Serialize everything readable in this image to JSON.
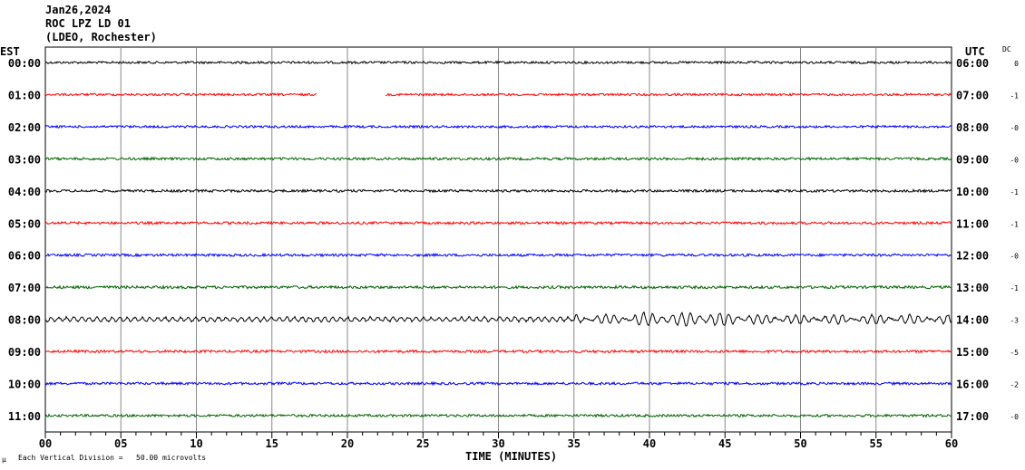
{
  "header": {
    "date": "Jan26,2024",
    "station": "ROC LPZ LD 01",
    "network": "(LDEO, Rochester)"
  },
  "left_axis_title": "EST",
  "right_axis_title": "UTC",
  "dc_title": "DC",
  "footer": {
    "mark": "μ",
    "scale": "Each Vertical Division =   50.00 microvolts",
    "xlabel": "TIME (MINUTES)"
  },
  "chart_data": {
    "type": "line",
    "title": "ROC LPZ LD 01 helicorder",
    "xlabel": "TIME (MINUTES)",
    "xlim": [
      0,
      60
    ],
    "xticks": [
      "00",
      "05",
      "10",
      "15",
      "20",
      "25",
      "30",
      "35",
      "40",
      "45",
      "50",
      "55",
      "60"
    ],
    "rows": [
      {
        "est": "00:00",
        "utc": "06:00",
        "dc": "0",
        "color": "#000000",
        "noise": 1
      },
      {
        "est": "01:00",
        "utc": "07:00",
        "dc": "-1",
        "color": "#ff0000",
        "noise": 1,
        "gap": [
          18,
          22.5
        ]
      },
      {
        "est": "02:00",
        "utc": "08:00",
        "dc": "-0",
        "color": "#0000ff",
        "noise": 1
      },
      {
        "est": "03:00",
        "utc": "09:00",
        "dc": "-0",
        "color": "#006400",
        "noise": 1.1
      },
      {
        "est": "04:00",
        "utc": "10:00",
        "dc": "-1",
        "color": "#000000",
        "noise": 1.1
      },
      {
        "est": "05:00",
        "utc": "11:00",
        "dc": "-1",
        "color": "#ff0000",
        "noise": 1.1
      },
      {
        "est": "06:00",
        "utc": "12:00",
        "dc": "-0",
        "color": "#0000ff",
        "noise": 1.1
      },
      {
        "est": "07:00",
        "utc": "13:00",
        "dc": "-1",
        "color": "#006400",
        "noise": 1.2
      },
      {
        "est": "08:00",
        "utc": "14:00",
        "dc": "-3",
        "color": "#000000",
        "noise": 2.5,
        "event": [
          35,
          60
        ]
      },
      {
        "est": "09:00",
        "utc": "15:00",
        "dc": "-5",
        "color": "#ff0000",
        "noise": 1.1
      },
      {
        "est": "10:00",
        "utc": "16:00",
        "dc": "-2",
        "color": "#0000ff",
        "noise": 1.1
      },
      {
        "est": "11:00",
        "utc": "17:00",
        "dc": "-0",
        "color": "#006400",
        "noise": 1.1
      }
    ]
  }
}
